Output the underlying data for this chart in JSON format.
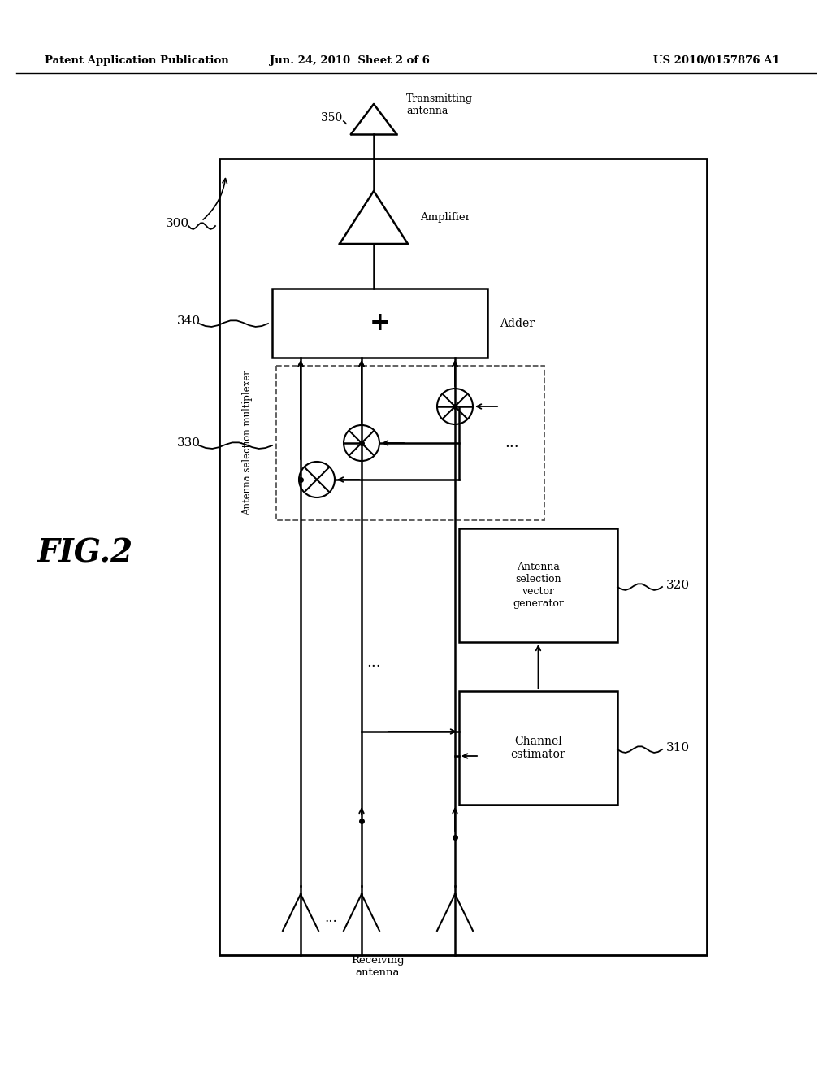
{
  "header_left": "Patent Application Publication",
  "header_center": "Jun. 24, 2010  Sheet 2 of 6",
  "header_right": "US 2010/0157876 A1",
  "fig_label": "FIG.2",
  "bg_color": "#ffffff",
  "line_color": "#000000"
}
